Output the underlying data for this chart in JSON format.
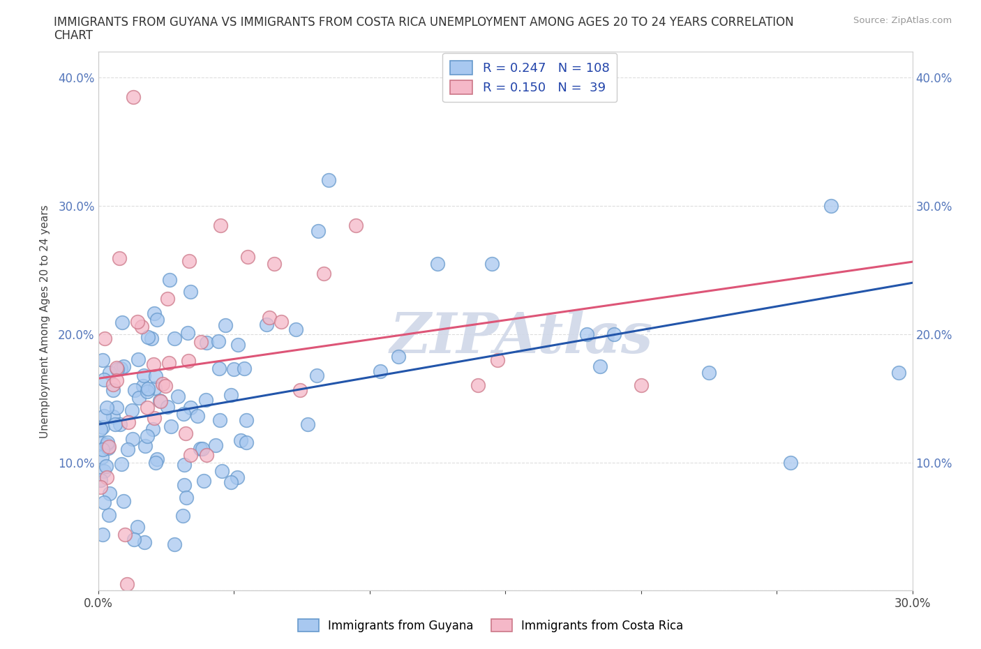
{
  "title_line1": "IMMIGRANTS FROM GUYANA VS IMMIGRANTS FROM COSTA RICA UNEMPLOYMENT AMONG AGES 20 TO 24 YEARS CORRELATION",
  "title_line2": "CHART",
  "source_text": "Source: ZipAtlas.com",
  "ylabel": "Unemployment Among Ages 20 to 24 years",
  "xlim": [
    0.0,
    0.3
  ],
  "ylim": [
    0.0,
    0.42
  ],
  "xticks": [
    0.0,
    0.05,
    0.1,
    0.15,
    0.2,
    0.25,
    0.3
  ],
  "yticks": [
    0.0,
    0.1,
    0.2,
    0.3,
    0.4
  ],
  "watermark": "ZIPAtlas",
  "watermark_color": "#d0d8e8",
  "guyana_color": "#a8c8f0",
  "guyana_edge_color": "#6699cc",
  "costa_rica_color": "#f5b8c8",
  "costa_rica_edge_color": "#cc7788",
  "line_guyana_color": "#2255aa",
  "line_costa_rica_color": "#dd5577",
  "background_color": "#ffffff",
  "grid_color": "#dddddd",
  "R_guyana": 0.247,
  "N_guyana": 108,
  "R_costa_rica": 0.15,
  "N_costa_rica": 39,
  "legend_label_guyana": "R = 0.247   N = 108",
  "legend_label_cr": "R = 0.150   N =  39",
  "bottom_label_guyana": "Immigrants from Guyana",
  "bottom_label_cr": "Immigrants from Costa Rica"
}
